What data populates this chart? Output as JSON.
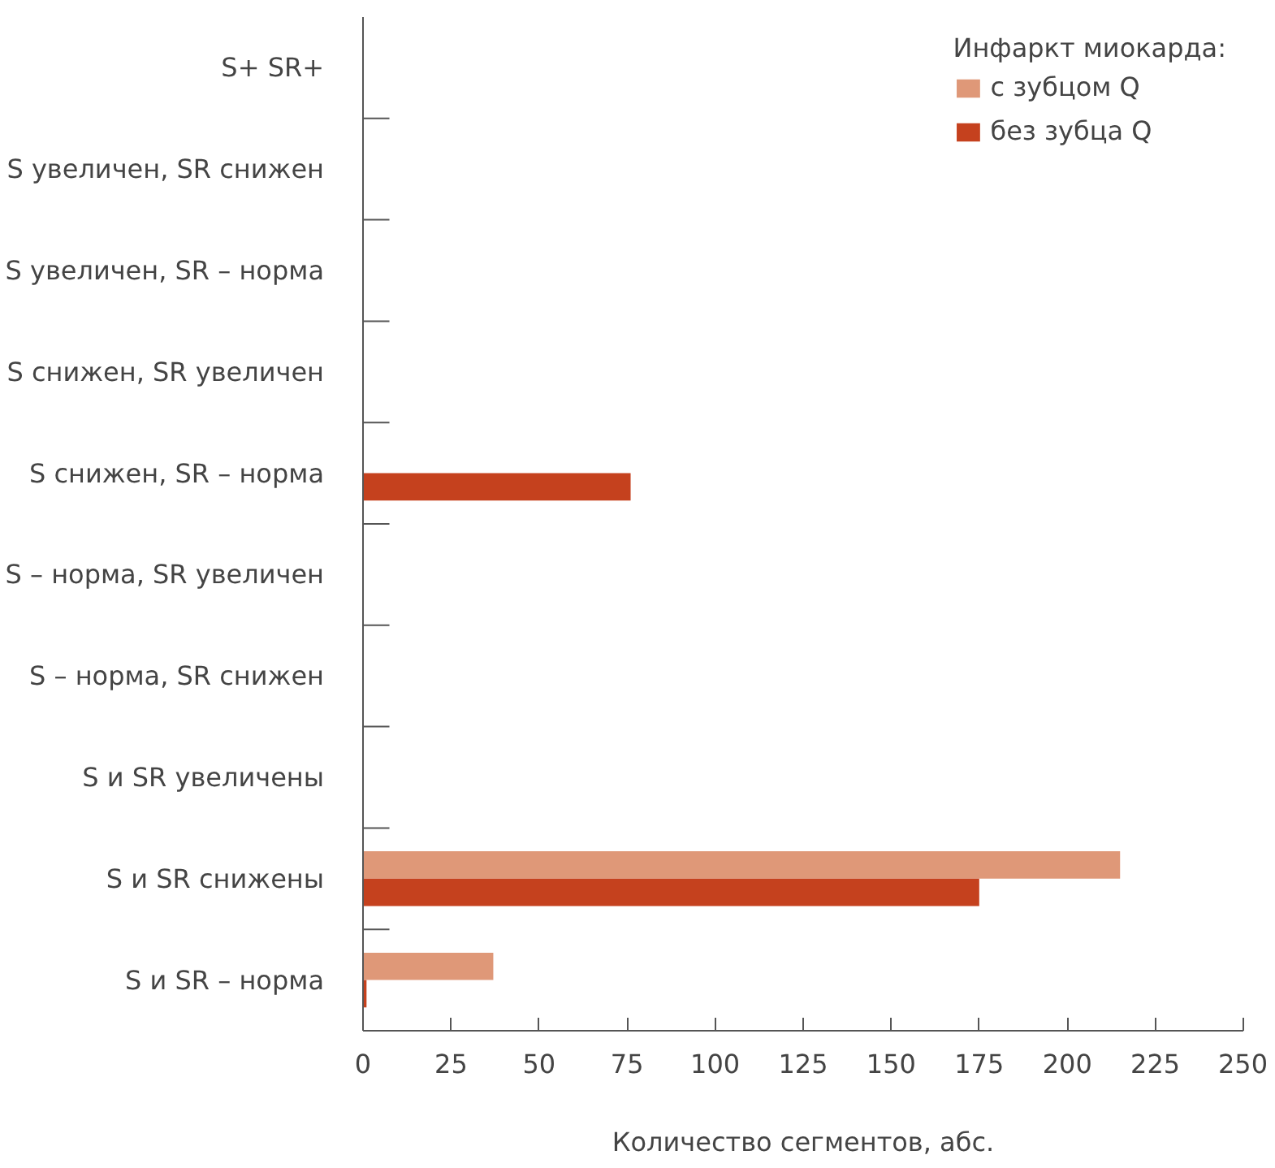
{
  "chart_data": {
    "type": "bar",
    "orientation": "horizontal",
    "xlabel": "Количество сегментов, абс.",
    "legend_title": "Инфаркт миокарда:",
    "categories": [
      "S+ SR+",
      "S увеличен, SR снижен",
      "S увеличен, SR – норма",
      "S снижен, SR увеличен",
      "S снижен, SR – норма",
      "S – норма, SR увеличен",
      "S – норма, SR снижен",
      "S и SR увеличены",
      "S и SR снижены",
      "S и SR – норма"
    ],
    "series": [
      {
        "name": "с зубцом Q",
        "color": "#df9878",
        "values": [
          0,
          0,
          0,
          0,
          0,
          0,
          0,
          0,
          215,
          37
        ]
      },
      {
        "name": "без зубца Q",
        "color": "#c5411e",
        "values": [
          0,
          0,
          0,
          0,
          76,
          0,
          0,
          0,
          175,
          1
        ]
      }
    ],
    "xlim": [
      0,
      250
    ],
    "xticks": [
      0,
      25,
      50,
      75,
      100,
      125,
      150,
      175,
      200,
      225,
      250
    ],
    "grid": false,
    "legend": "top right"
  }
}
